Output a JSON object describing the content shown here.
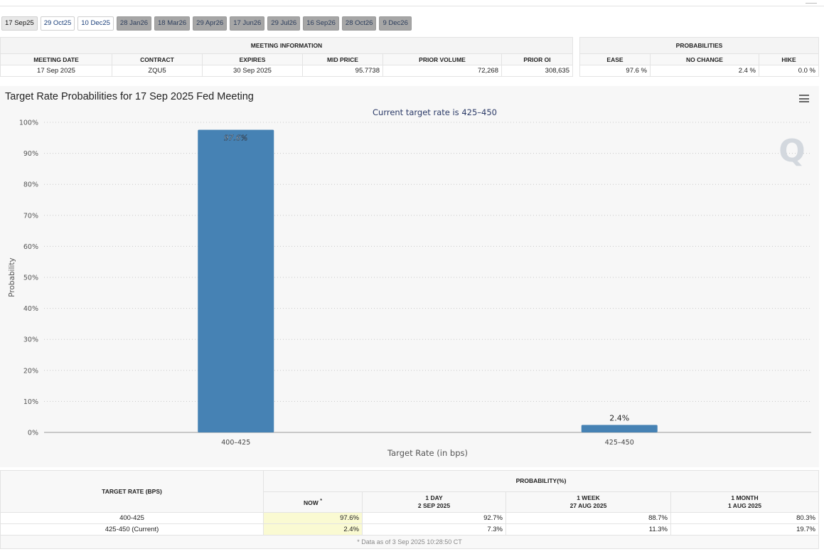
{
  "tabs": [
    {
      "label": "17 Sep25",
      "state": "selected"
    },
    {
      "label": "29 Oct25",
      "state": "blue"
    },
    {
      "label": "10 Dec25",
      "state": "blue"
    },
    {
      "label": "28 Jan26",
      "state": "gray"
    },
    {
      "label": "18 Mar26",
      "state": "gray"
    },
    {
      "label": "29 Apr26",
      "state": "gray"
    },
    {
      "label": "17 Jun26",
      "state": "gray"
    },
    {
      "label": "29 Jul26",
      "state": "gray"
    },
    {
      "label": "16 Sep26",
      "state": "gray"
    },
    {
      "label": "28 Oct26",
      "state": "gray"
    },
    {
      "label": "9 Dec26",
      "state": "gray"
    }
  ],
  "meeting_info": {
    "group_header": "MEETING INFORMATION",
    "headers": [
      "MEETING DATE",
      "CONTRACT",
      "EXPIRES",
      "MID PRICE",
      "PRIOR VOLUME",
      "PRIOR OI"
    ],
    "row": [
      "17 Sep 2025",
      "ZQU5",
      "30 Sep 2025",
      "95.7738",
      "72,268",
      "308,635"
    ]
  },
  "probabilities": {
    "group_header": "PROBABILITIES",
    "headers": [
      "EASE",
      "NO CHANGE",
      "HIKE"
    ],
    "row": [
      "97.6 %",
      "2.4 %",
      "0.0 %"
    ]
  },
  "chart_data": {
    "type": "bar",
    "title": "Target Rate Probabilities for 17 Sep 2025 Fed Meeting",
    "subtitle": "Current target rate is 425–450",
    "xlabel": "Target Rate (in bps)",
    "ylabel": "Probability",
    "categories": [
      "400–425",
      "425–450"
    ],
    "values": [
      97.6,
      2.4
    ],
    "data_labels": [
      "97.6%",
      "2.4%"
    ],
    "ylim": [
      0,
      100
    ],
    "yticks": [
      "0%",
      "10%",
      "20%",
      "30%",
      "40%",
      "50%",
      "60%",
      "70%",
      "80%",
      "90%",
      "100%"
    ],
    "grid": true,
    "bar_color": "#4682b4",
    "watermark": "Q"
  },
  "history": {
    "col_header": "TARGET RATE (BPS)",
    "group_header": "PROBABILITY(%)",
    "now_label": "NOW",
    "now_mark": "*",
    "periods": [
      {
        "line1": "1 DAY",
        "line2": "2 SEP 2025"
      },
      {
        "line1": "1 WEEK",
        "line2": "27 AUG 2025"
      },
      {
        "line1": "1 MONTH",
        "line2": "1 AUG 2025"
      }
    ],
    "rows": [
      {
        "rate": "400-425",
        "now": "97.6%",
        "d1": "92.7%",
        "w1": "88.7%",
        "m1": "80.3%"
      },
      {
        "rate": "425-450 (Current)",
        "now": "2.4%",
        "d1": "7.3%",
        "w1": "11.3%",
        "m1": "19.7%"
      }
    ],
    "footnote": "* Data as of 3 Sep 2025 10:28:50 CT"
  }
}
